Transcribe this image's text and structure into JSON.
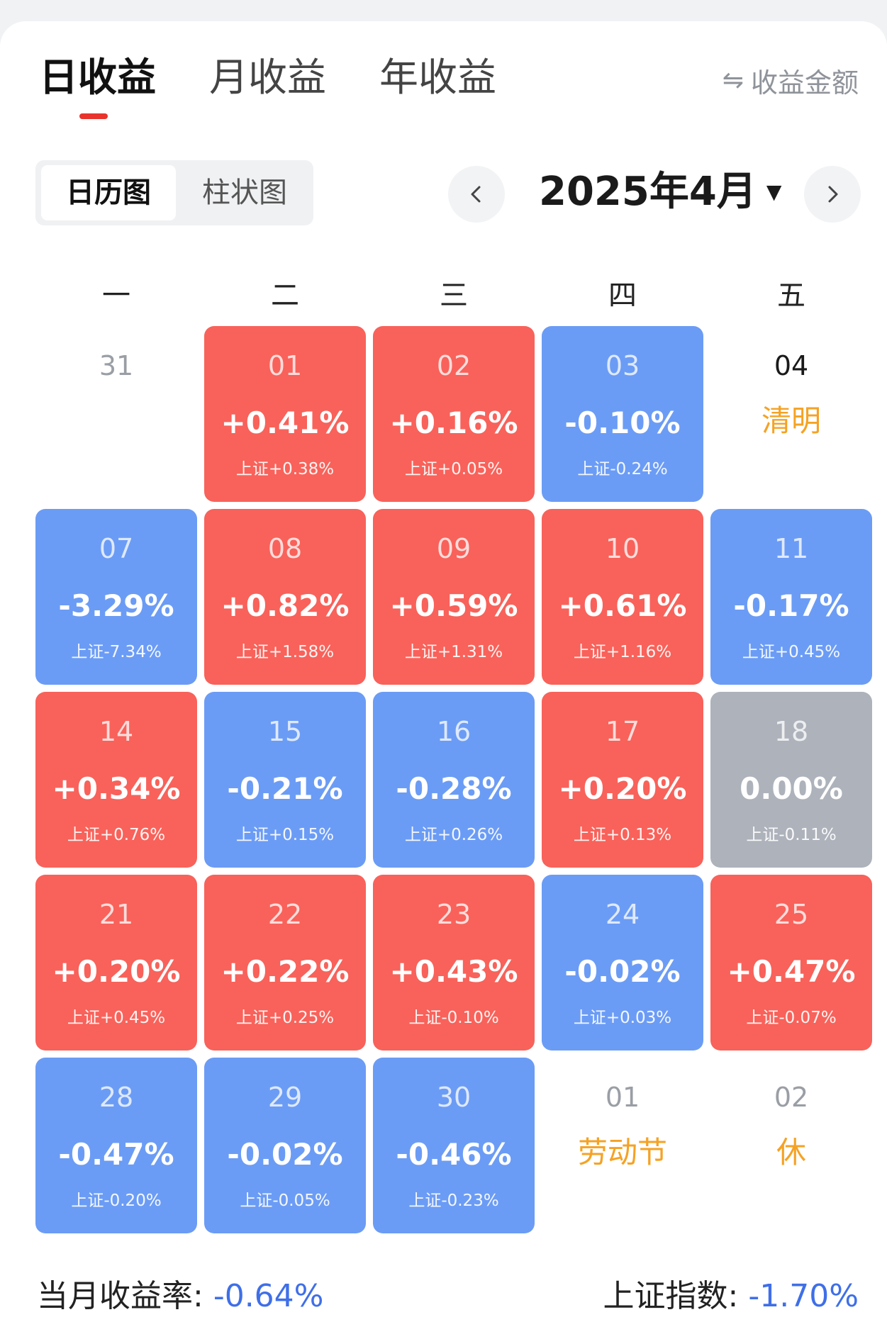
{
  "tabs": [
    {
      "label": "日收益",
      "active": true
    },
    {
      "label": "月收益",
      "active": false
    },
    {
      "label": "年收益",
      "active": false
    }
  ],
  "toggle_label": "收益金额",
  "view_switch": {
    "calendar": "日历图",
    "bar": "柱状图"
  },
  "month_label": "2025年4月",
  "weekdays": [
    "一",
    "二",
    "三",
    "四",
    "五"
  ],
  "colors": {
    "up": "#f8625a",
    "down": "#6b9cf5",
    "flat": "#adb2bb",
    "holiday": "#f5a224",
    "summary_value": "#3f6fe8"
  },
  "days": [
    {
      "date": "31",
      "type": "blank"
    },
    {
      "date": "01",
      "type": "up",
      "ret": "+0.41%",
      "index": "上证+0.38%"
    },
    {
      "date": "02",
      "type": "up",
      "ret": "+0.16%",
      "index": "上证+0.05%"
    },
    {
      "date": "03",
      "type": "down",
      "ret": "-0.10%",
      "index": "上证-0.24%"
    },
    {
      "date": "04",
      "type": "holiday",
      "holiday": "清明"
    },
    {
      "date": "07",
      "type": "down",
      "ret": "-3.29%",
      "index": "上证-7.34%"
    },
    {
      "date": "08",
      "type": "up",
      "ret": "+0.82%",
      "index": "上证+1.58%"
    },
    {
      "date": "09",
      "type": "up",
      "ret": "+0.59%",
      "index": "上证+1.31%"
    },
    {
      "date": "10",
      "type": "up",
      "ret": "+0.61%",
      "index": "上证+1.16%"
    },
    {
      "date": "11",
      "type": "down",
      "ret": "-0.17%",
      "index": "上证+0.45%"
    },
    {
      "date": "14",
      "type": "up",
      "ret": "+0.34%",
      "index": "上证+0.76%"
    },
    {
      "date": "15",
      "type": "down",
      "ret": "-0.21%",
      "index": "上证+0.15%"
    },
    {
      "date": "16",
      "type": "down",
      "ret": "-0.28%",
      "index": "上证+0.26%"
    },
    {
      "date": "17",
      "type": "up",
      "ret": "+0.20%",
      "index": "上证+0.13%"
    },
    {
      "date": "18",
      "type": "flat",
      "ret": "0.00%",
      "index": "上证-0.11%"
    },
    {
      "date": "21",
      "type": "up",
      "ret": "+0.20%",
      "index": "上证+0.45%"
    },
    {
      "date": "22",
      "type": "up",
      "ret": "+0.22%",
      "index": "上证+0.25%"
    },
    {
      "date": "23",
      "type": "up",
      "ret": "+0.43%",
      "index": "上证-0.10%"
    },
    {
      "date": "24",
      "type": "down",
      "ret": "-0.02%",
      "index": "上证+0.03%"
    },
    {
      "date": "25",
      "type": "up",
      "ret": "+0.47%",
      "index": "上证-0.07%"
    },
    {
      "date": "28",
      "type": "down",
      "ret": "-0.47%",
      "index": "上证-0.20%"
    },
    {
      "date": "29",
      "type": "down",
      "ret": "-0.02%",
      "index": "上证-0.05%"
    },
    {
      "date": "30",
      "type": "down",
      "ret": "-0.46%",
      "index": "上证-0.23%"
    },
    {
      "date": "01",
      "type": "holiday",
      "holiday": "劳动节"
    },
    {
      "date": "02",
      "type": "holiday",
      "holiday": "休"
    }
  ],
  "summary": {
    "month_rate_label": "当月收益率:",
    "month_rate_value": "-0.64%",
    "index_label": "上证指数:",
    "index_value": "-1.70%"
  }
}
